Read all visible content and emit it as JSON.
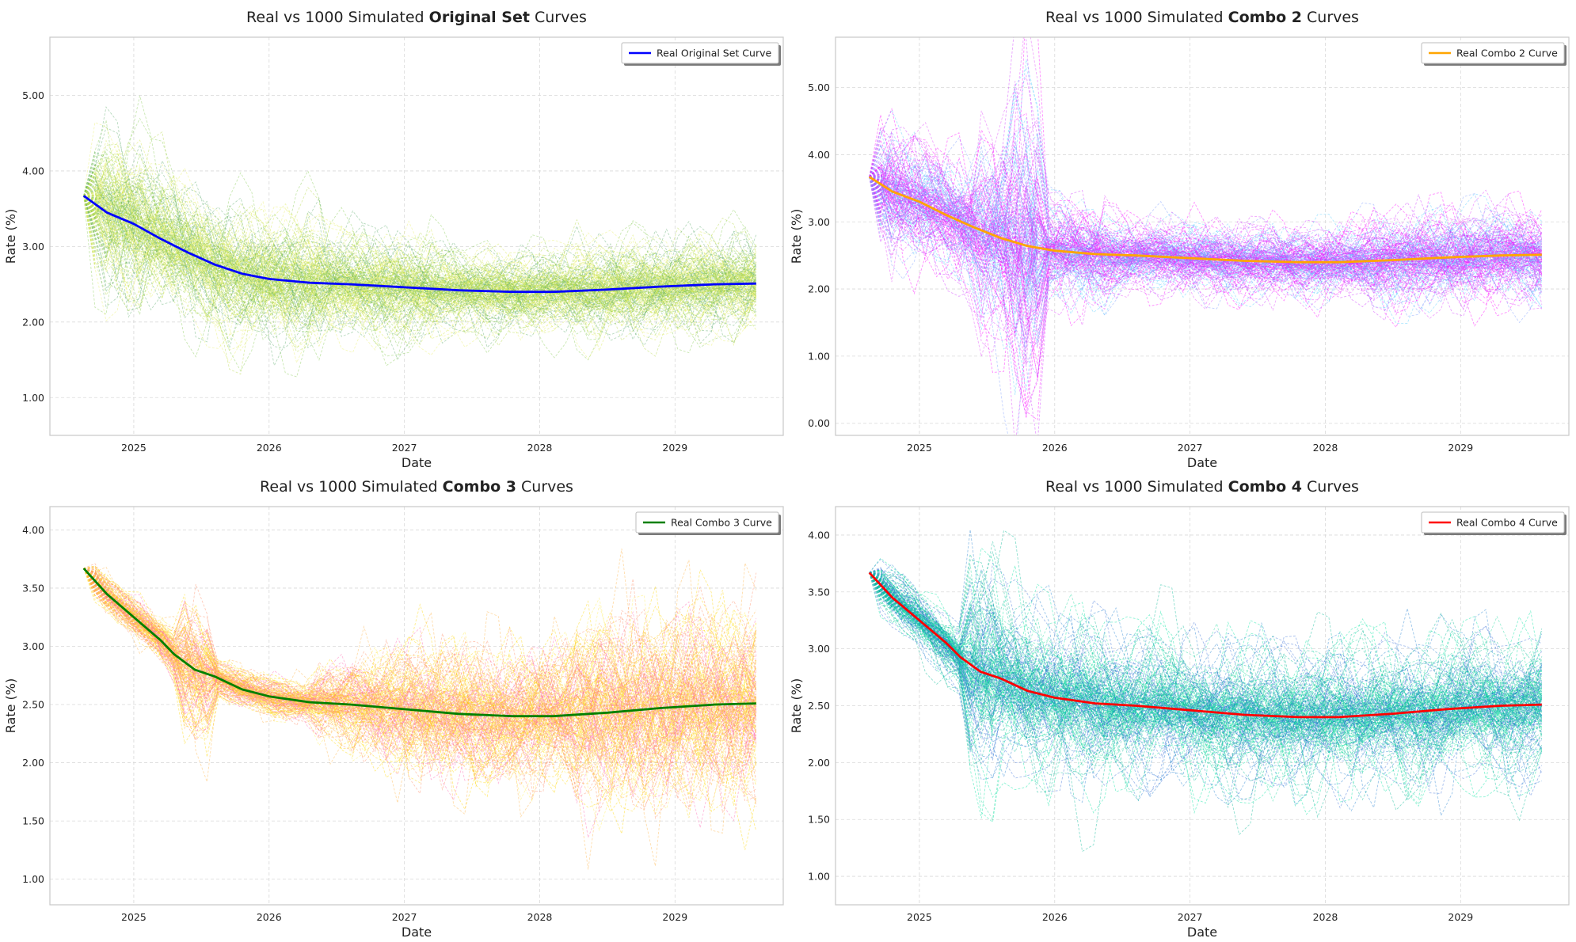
{
  "chart_data": [
    {
      "type": "line",
      "title_parts": [
        "Real vs 1000 Simulated ",
        "Original Set",
        " Curves"
      ],
      "xlabel": "Date",
      "ylabel": "Rate (%)",
      "xlim": [
        2024.38,
        2029.8
      ],
      "ylim": [
        0.5,
        5.77
      ],
      "x_ticks": [
        "2025",
        "2026",
        "2027",
        "2028",
        "2029"
      ],
      "y_ticks": [
        "1.00",
        "2.00",
        "3.00",
        "4.00",
        "5.00"
      ],
      "grid": true,
      "legend_position": "top-right",
      "real_curve": {
        "name": "Real Original Set Curve",
        "color": "#0000ff",
        "x": [
          2024.63,
          2024.8,
          2025.0,
          2025.2,
          2025.4,
          2025.6,
          2025.8,
          2026.0,
          2026.3,
          2026.6,
          2027.0,
          2027.4,
          2027.8,
          2028.1,
          2028.5,
          2028.9,
          2029.3,
          2029.6
        ],
        "y": [
          3.67,
          3.45,
          3.3,
          3.1,
          2.92,
          2.76,
          2.64,
          2.57,
          2.52,
          2.5,
          2.46,
          2.42,
          2.4,
          2.4,
          2.43,
          2.47,
          2.5,
          2.51
        ]
      },
      "simulated_count": 1000,
      "simulated_palette": [
        "#88cc55",
        "#b5d94a",
        "#e8ef6a",
        "#5fae6e",
        "#d7e84f"
      ]
    },
    {
      "type": "line",
      "title_parts": [
        "Real vs 1000 Simulated ",
        "Combo 2",
        " Curves"
      ],
      "xlabel": "Date",
      "ylabel": "Rate (%)",
      "xlim": [
        2024.38,
        2029.8
      ],
      "ylim": [
        -0.18,
        5.75
      ],
      "x_ticks": [
        "2025",
        "2026",
        "2027",
        "2028",
        "2029"
      ],
      "y_ticks": [
        "0.00",
        "1.00",
        "2.00",
        "3.00",
        "4.00",
        "5.00"
      ],
      "grid": true,
      "legend_position": "top-right",
      "real_curve": {
        "name": "Real Combo 2 Curve",
        "color": "#ffa500",
        "x": [
          2024.63,
          2024.8,
          2025.0,
          2025.2,
          2025.4,
          2025.6,
          2025.8,
          2026.0,
          2026.3,
          2026.6,
          2027.0,
          2027.4,
          2027.8,
          2028.1,
          2028.5,
          2028.9,
          2029.3,
          2029.6
        ],
        "y": [
          3.67,
          3.45,
          3.3,
          3.1,
          2.92,
          2.76,
          2.64,
          2.57,
          2.52,
          2.5,
          2.46,
          2.42,
          2.4,
          2.4,
          2.43,
          2.47,
          2.5,
          2.51
        ]
      },
      "simulated_count": 1000,
      "simulated_palette": [
        "#ff00ff",
        "#cc33ff",
        "#7a9bff",
        "#55ccff",
        "#e040fb"
      ]
    },
    {
      "type": "line",
      "title_parts": [
        "Real vs 1000 Simulated ",
        "Combo 3",
        " Curves"
      ],
      "xlabel": "Date",
      "ylabel": "Rate (%)",
      "xlim": [
        2024.38,
        2029.8
      ],
      "ylim": [
        0.78,
        4.2
      ],
      "x_ticks": [
        "2025",
        "2026",
        "2027",
        "2028",
        "2029"
      ],
      "y_ticks": [
        "1.00",
        "1.50",
        "2.00",
        "2.50",
        "3.00",
        "3.50",
        "4.00"
      ],
      "grid": true,
      "legend_position": "top-right",
      "real_curve": {
        "name": "Real Combo 3 Curve",
        "color": "#008000",
        "x": [
          2024.63,
          2024.8,
          2025.0,
          2025.2,
          2025.3,
          2025.45,
          2025.6,
          2025.8,
          2026.0,
          2026.3,
          2026.6,
          2027.0,
          2027.4,
          2027.8,
          2028.1,
          2028.5,
          2028.9,
          2029.3,
          2029.6
        ],
        "y": [
          3.67,
          3.45,
          3.25,
          3.05,
          2.93,
          2.8,
          2.74,
          2.63,
          2.57,
          2.52,
          2.5,
          2.46,
          2.42,
          2.4,
          2.4,
          2.43,
          2.47,
          2.5,
          2.51
        ]
      },
      "simulated_count": 1000,
      "simulated_palette": [
        "#ffd700",
        "#ff8c66",
        "#ff69b4",
        "#ffb347",
        "#ffee55"
      ]
    },
    {
      "type": "line",
      "title_parts": [
        "Real vs 1000 Simulated ",
        "Combo 4",
        " Curves"
      ],
      "xlabel": "Date",
      "ylabel": "Rate (%)",
      "xlim": [
        2024.38,
        2029.8
      ],
      "ylim": [
        0.75,
        4.25
      ],
      "x_ticks": [
        "2025",
        "2026",
        "2027",
        "2028",
        "2029"
      ],
      "y_ticks": [
        "1.00",
        "1.50",
        "2.00",
        "2.50",
        "3.00",
        "3.50",
        "4.00"
      ],
      "grid": true,
      "legend_position": "top-right",
      "real_curve": {
        "name": "Real Combo 4 Curve",
        "color": "#ff0000",
        "x": [
          2024.63,
          2024.8,
          2025.0,
          2025.2,
          2025.3,
          2025.45,
          2025.6,
          2025.8,
          2026.0,
          2026.3,
          2026.6,
          2027.0,
          2027.4,
          2027.8,
          2028.1,
          2028.5,
          2028.9,
          2029.3,
          2029.6
        ],
        "y": [
          3.67,
          3.45,
          3.25,
          3.05,
          2.93,
          2.8,
          2.74,
          2.63,
          2.57,
          2.52,
          2.5,
          2.46,
          2.42,
          2.4,
          2.4,
          2.43,
          2.47,
          2.5,
          2.51
        ]
      },
      "simulated_count": 1000,
      "simulated_palette": [
        "#1e7fd0",
        "#00b894",
        "#26d9a0",
        "#3a6fd8",
        "#00e5a0"
      ]
    }
  ]
}
